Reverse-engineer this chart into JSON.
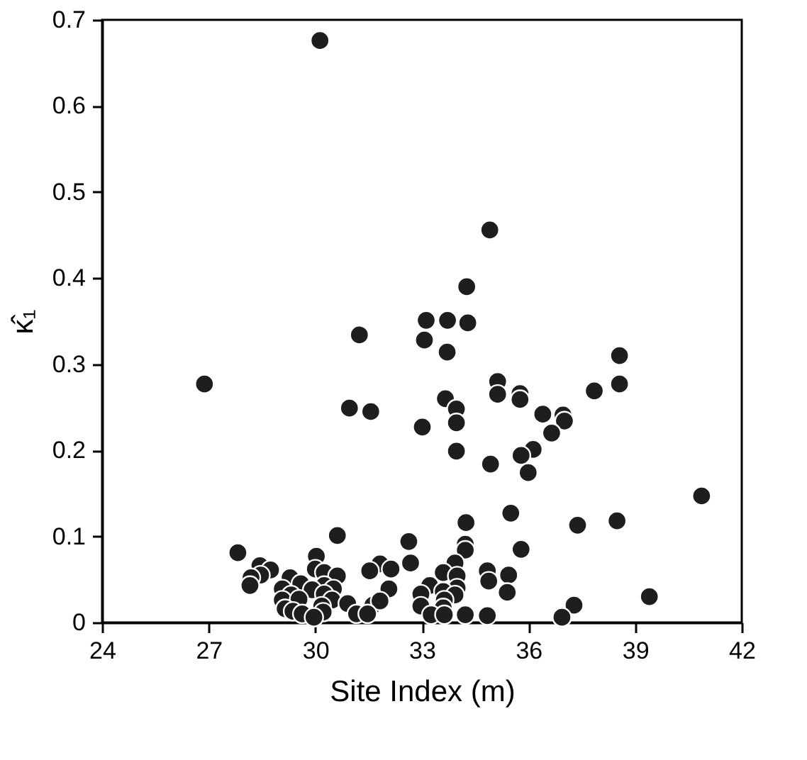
{
  "chart_data": {
    "type": "scatter",
    "xlabel": "Site Index (m)",
    "ylabel": "κ̂₁",
    "xlim": [
      24,
      42
    ],
    "xticks": [
      24,
      27,
      30,
      33,
      36,
      39,
      42
    ],
    "ylim": [
      0,
      0.7
    ],
    "yticks": [
      0,
      0.1,
      0.2,
      0.3,
      0.4,
      0.5,
      0.6,
      0.7
    ],
    "grid": false,
    "marker": "circle",
    "series": [
      {
        "color": "#1e1e1e",
        "x": [
          30.13,
          26.88,
          34.91,
          34.26,
          33.12,
          33.72,
          34.29,
          31.24,
          33.07,
          33.71,
          38.56,
          35.13,
          38.56,
          37.85,
          35.76,
          35.13,
          35.76,
          33.66,
          30.96,
          31.56,
          33.97,
          36.4,
          36.97,
          33.97,
          37.01,
          33.01,
          36.65,
          33.97,
          36.13,
          35.79,
          34.93,
          35.99,
          40.87,
          35.5,
          34.24,
          38.49,
          37.38,
          30.62,
          32.63,
          34.22,
          34.22,
          35.79,
          27.82,
          30.03,
          32.68,
          33.93,
          28.44,
          31.82,
          28.74,
          32.13,
          30.0,
          31.53,
          34.84,
          33.6,
          30.25,
          28.46,
          30.62,
          35.44,
          33.99,
          28.19,
          29.29,
          34.88,
          29.59,
          30.25,
          33.22,
          32.07,
          28.16,
          29.07,
          30.51,
          33.99,
          33.6,
          29.91,
          35.4,
          39.4,
          32.97,
          29.32,
          30.25,
          33.93,
          29.07,
          29.54,
          30.47,
          33.63,
          30.91,
          37.28,
          31.62,
          31.82,
          32.97,
          30.18,
          33.6,
          29.15,
          29.37,
          29.63,
          31.16,
          31.47,
          30.22,
          33.26,
          33.63,
          34.22,
          34.84,
          36.94,
          29.96
        ],
        "values": [
          0.676,
          0.277,
          0.456,
          0.39,
          0.351,
          0.351,
          0.348,
          0.334,
          0.328,
          0.314,
          0.31,
          0.28,
          0.277,
          0.269,
          0.266,
          0.265,
          0.259,
          0.26,
          0.249,
          0.245,
          0.248,
          0.242,
          0.241,
          0.232,
          0.234,
          0.227,
          0.22,
          0.199,
          0.201,
          0.194,
          0.184,
          0.174,
          0.147,
          0.127,
          0.116,
          0.118,
          0.113,
          0.101,
          0.094,
          0.091,
          0.084,
          0.085,
          0.081,
          0.077,
          0.069,
          0.069,
          0.066,
          0.068,
          0.061,
          0.062,
          0.062,
          0.06,
          0.06,
          0.058,
          0.058,
          0.055,
          0.054,
          0.055,
          0.054,
          0.052,
          0.052,
          0.048,
          0.045,
          0.043,
          0.043,
          0.039,
          0.043,
          0.039,
          0.039,
          0.04,
          0.036,
          0.038,
          0.035,
          0.03,
          0.033,
          0.032,
          0.033,
          0.032,
          0.026,
          0.027,
          0.026,
          0.026,
          0.022,
          0.02,
          0.02,
          0.025,
          0.019,
          0.019,
          0.017,
          0.016,
          0.013,
          0.01,
          0.01,
          0.01,
          0.012,
          0.009,
          0.009,
          0.009,
          0.008,
          0.006,
          0.006
        ]
      }
    ]
  }
}
